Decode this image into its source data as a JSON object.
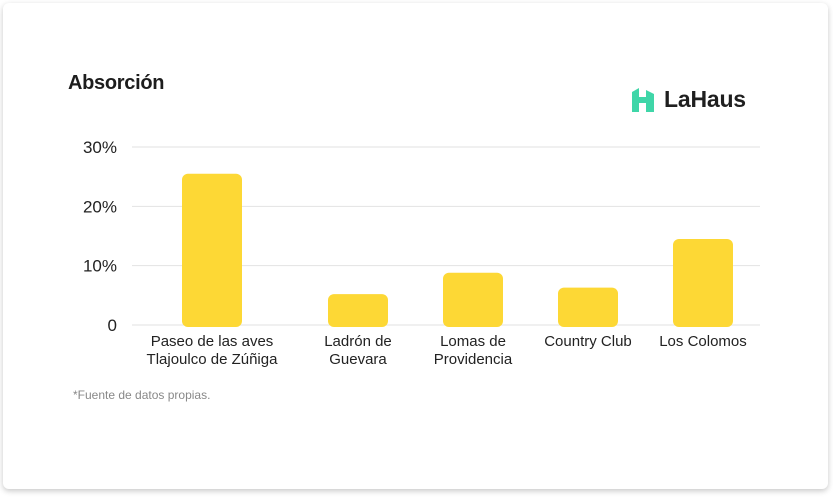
{
  "title": "Absorción",
  "logo": {
    "text": "LaHaus",
    "icon": "house-logo-icon",
    "color": "#3fd6a8"
  },
  "footnote": "*Fuente de datos propias.",
  "colors": {
    "bar": "#fdd835",
    "grid": "#e2e2e2",
    "text": "#222222"
  },
  "chart_data": {
    "type": "bar",
    "categories": [
      [
        "Paseo de las aves",
        "Tlajoulco de Zúñiga"
      ],
      [
        "Ladrón de",
        "Guevara"
      ],
      [
        "Lomas de",
        "Providencia"
      ],
      [
        "Country Club"
      ],
      [
        "Los Colomos"
      ]
    ],
    "values": [
      25.5,
      5.2,
      8.8,
      6.3,
      14.5
    ],
    "ylim": [
      0,
      30
    ],
    "yticks": [
      0,
      10,
      20,
      30
    ],
    "ytick_labels": [
      "0",
      "10%",
      "20%",
      "30%"
    ],
    "grid": true,
    "title": "Absorción",
    "xlabel": "",
    "ylabel": ""
  }
}
